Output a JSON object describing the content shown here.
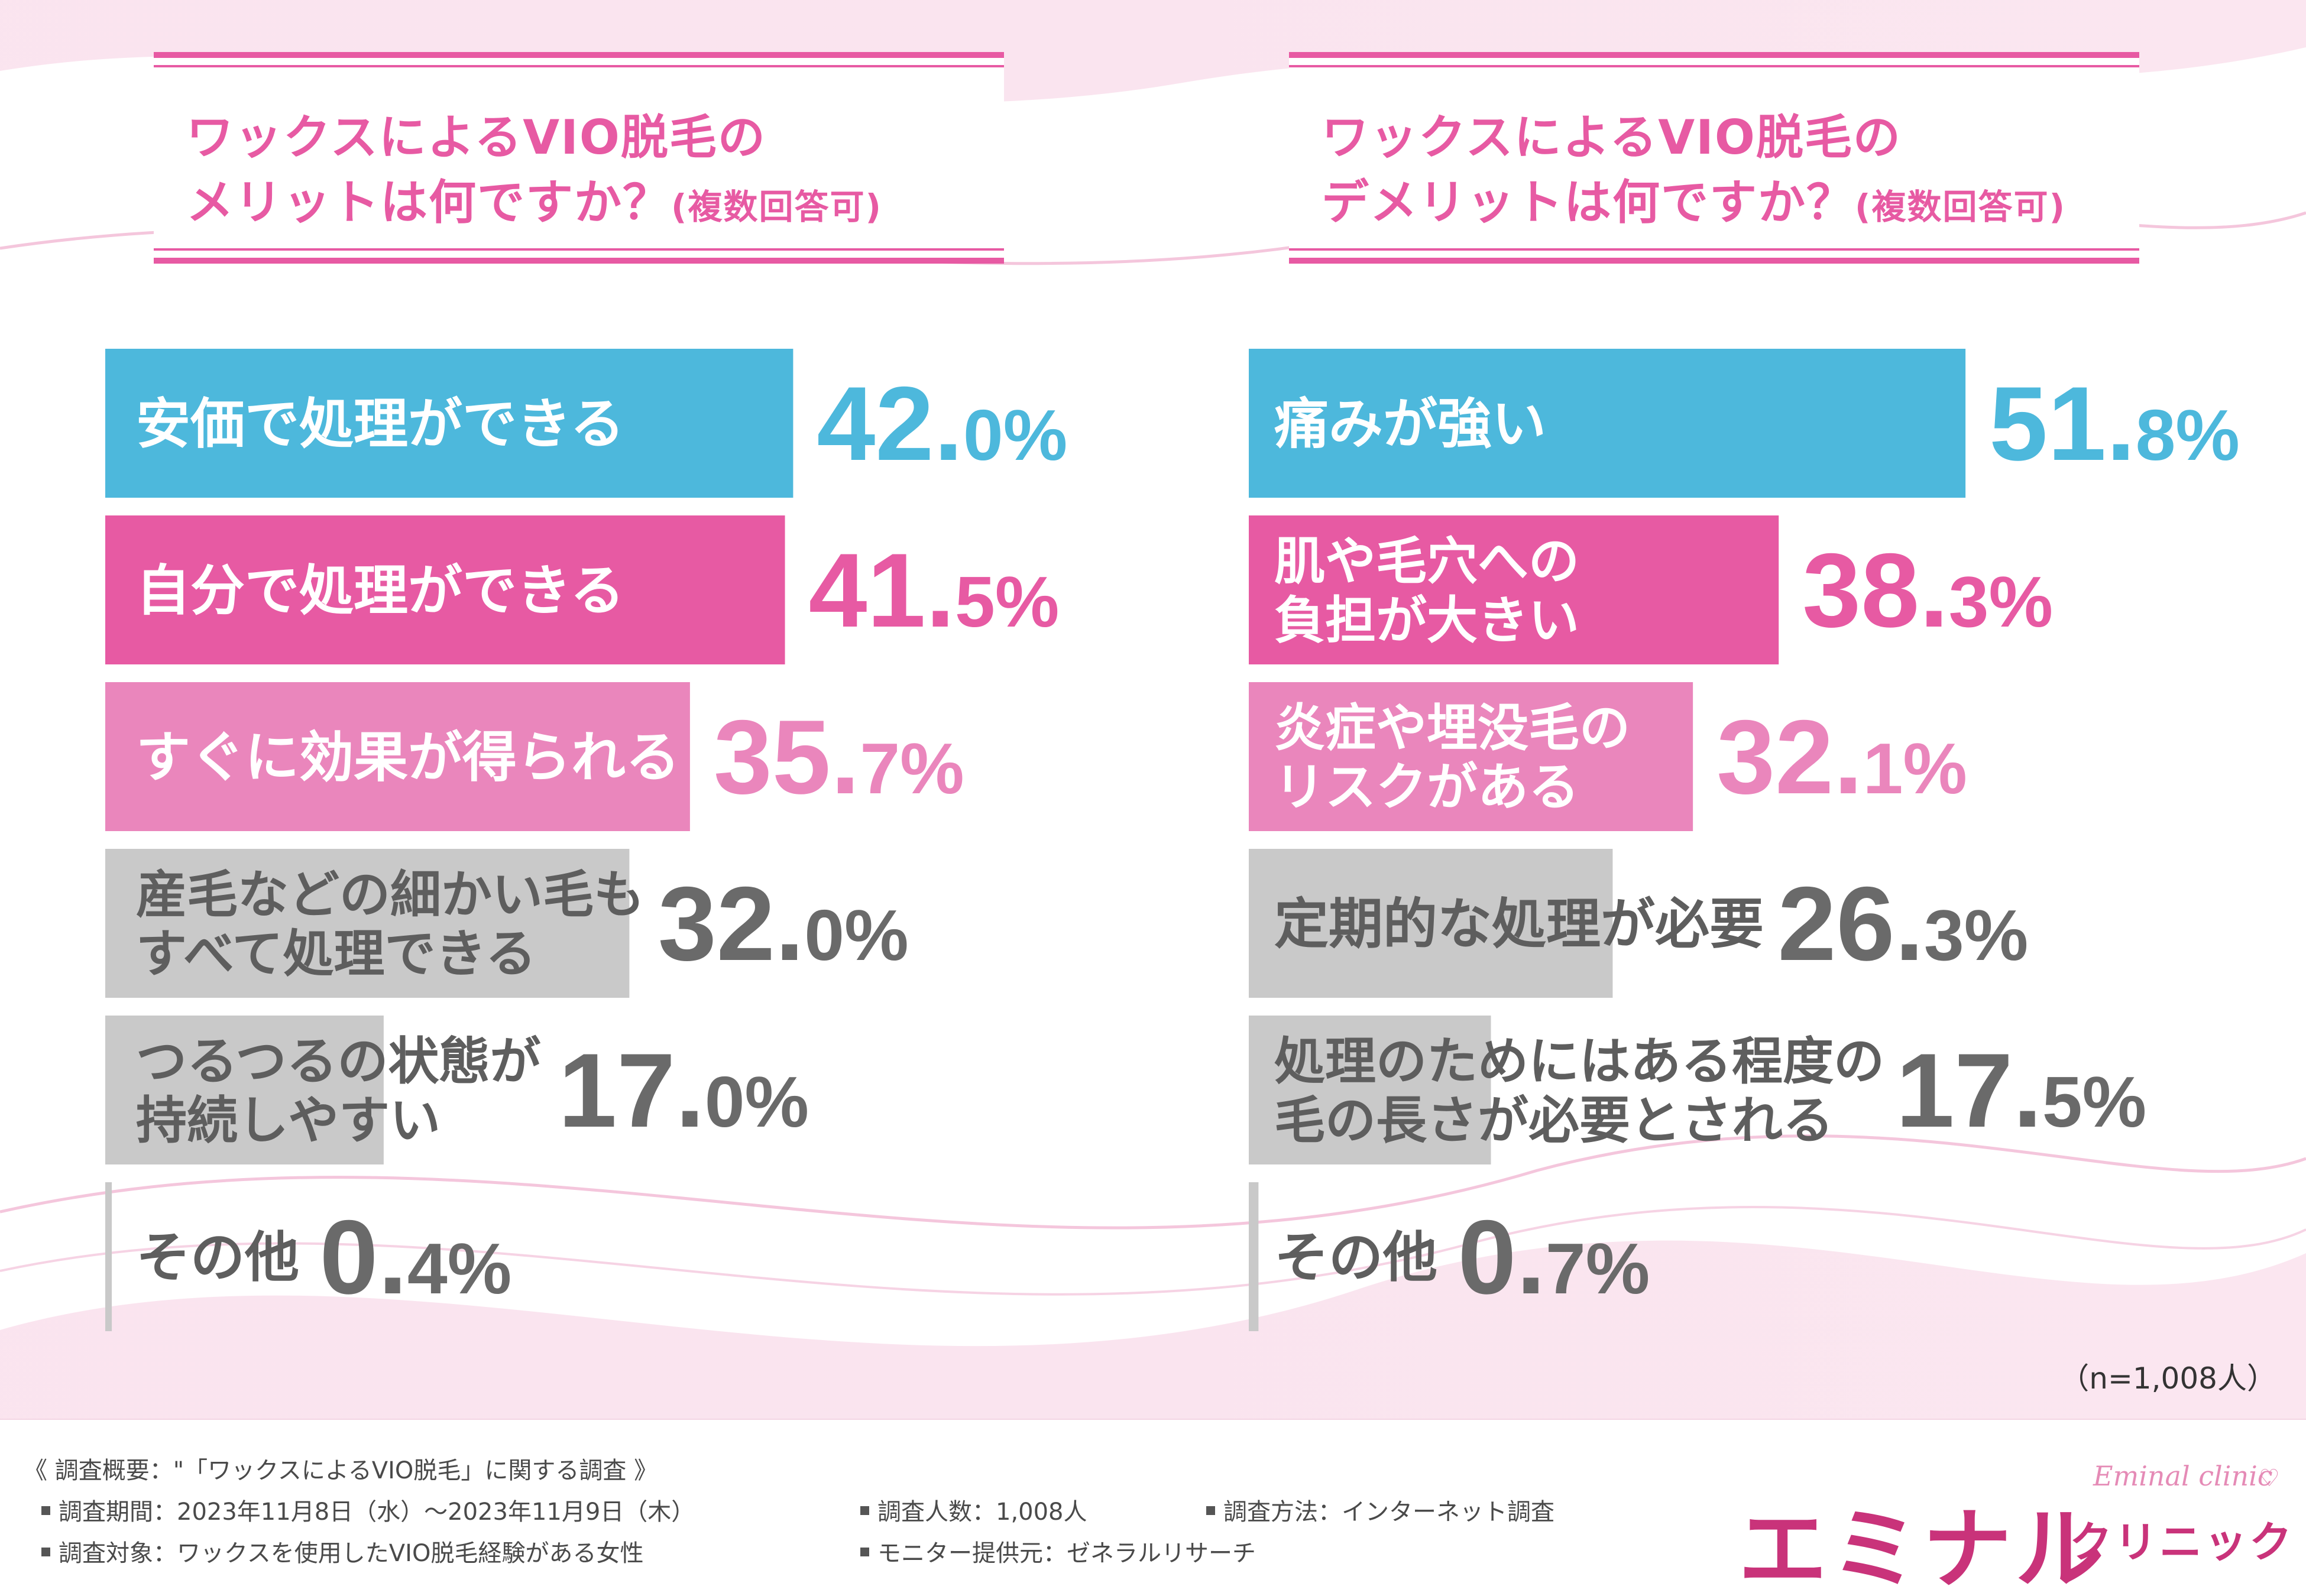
{
  "chart_data": [
    {
      "type": "bar",
      "title_lines": [
        "ワックスによるVIO脱毛の",
        "メリットは何ですか？"
      ],
      "title_suffix": "(複数回答可)",
      "categories": [
        [
          "安価で処理ができる"
        ],
        [
          "自分で処理ができる"
        ],
        [
          "すぐに効果が得られる"
        ],
        [
          "産毛などの細かい毛も",
          "すべて処理できる"
        ],
        [
          "つるつるの状態が",
          "持続しやすい"
        ],
        [
          "その他"
        ]
      ],
      "values": [
        42.0,
        41.5,
        35.7,
        32.0,
        17.0,
        0.4
      ],
      "value_labels": [
        {
          "int": "42.",
          "dec": "0%"
        },
        {
          "int": "41.",
          "dec": "5%"
        },
        {
          "int": "35.",
          "dec": "7%"
        },
        {
          "int": "32.",
          "dec": "0%"
        },
        {
          "int": "17.",
          "dec": "0%"
        },
        {
          "int": "0.",
          "dec": "4%"
        }
      ],
      "colors": [
        "#4db8dc",
        "#e75aa3",
        "#ea86bc",
        "#c9c9c9",
        "#c9c9c9",
        "#c9c9c9"
      ],
      "label_colors": [
        "#4db8dc",
        "#e75aa3",
        "#ea86bc",
        "#6a6a6a",
        "#6a6a6a",
        "#6a6a6a"
      ],
      "text_colors": [
        "#ffffff",
        "#ffffff",
        "#ffffff",
        "#5e5e5e",
        "#5e5e5e",
        "#5e5e5e"
      ],
      "xlim": [
        0,
        100
      ]
    },
    {
      "type": "bar",
      "title_lines": [
        "ワックスによるVIO脱毛の",
        "デメリットは何ですか？"
      ],
      "title_suffix": "(複数回答可)",
      "categories": [
        [
          "痛みが強い"
        ],
        [
          "肌や毛穴への",
          "負担が大きい"
        ],
        [
          "炎症や埋没毛の",
          "リスクがある"
        ],
        [
          "定期的な処理が必要"
        ],
        [
          "処理のためにはある程度の",
          "毛の長さが必要とされる"
        ],
        [
          "その他"
        ]
      ],
      "values": [
        51.8,
        38.3,
        32.1,
        26.3,
        17.5,
        0.7
      ],
      "value_labels": [
        {
          "int": "51.",
          "dec": "8%"
        },
        {
          "int": "38.",
          "dec": "3%"
        },
        {
          "int": "32.",
          "dec": "1%"
        },
        {
          "int": "26.",
          "dec": "3%"
        },
        {
          "int": "17.",
          "dec": "5%"
        },
        {
          "int": "0.",
          "dec": "7%"
        }
      ],
      "colors": [
        "#4db8dc",
        "#e75aa3",
        "#ea86bc",
        "#c9c9c9",
        "#c9c9c9",
        "#c9c9c9"
      ],
      "label_colors": [
        "#4db8dc",
        "#e75aa3",
        "#ea86bc",
        "#6a6a6a",
        "#6a6a6a",
        "#6a6a6a"
      ],
      "text_colors": [
        "#ffffff",
        "#ffffff",
        "#ffffff",
        "#5e5e5e",
        "#5e5e5e",
        "#5e5e5e"
      ],
      "xlim": [
        0,
        100
      ]
    }
  ],
  "sample_note": "（n=1,008人）",
  "footer": {
    "summary": "《 調査概要：\"「ワックスによるVIO脱毛」に関する調査 》",
    "period": "調査期間：2023年11月8日（水）～2023年11月9日（木）",
    "count": "調査人数：1,008人",
    "method": "調査方法：インターネット調査",
    "target": "調査対象：ワックスを使用したVIO脱毛経験がある女性",
    "provider": "モニター提供元：ゼネラルリサーチ"
  },
  "logo": {
    "main": "エミナル",
    "sub": "クリニック",
    "en": "Eminal clinic",
    "heart": "♡"
  }
}
